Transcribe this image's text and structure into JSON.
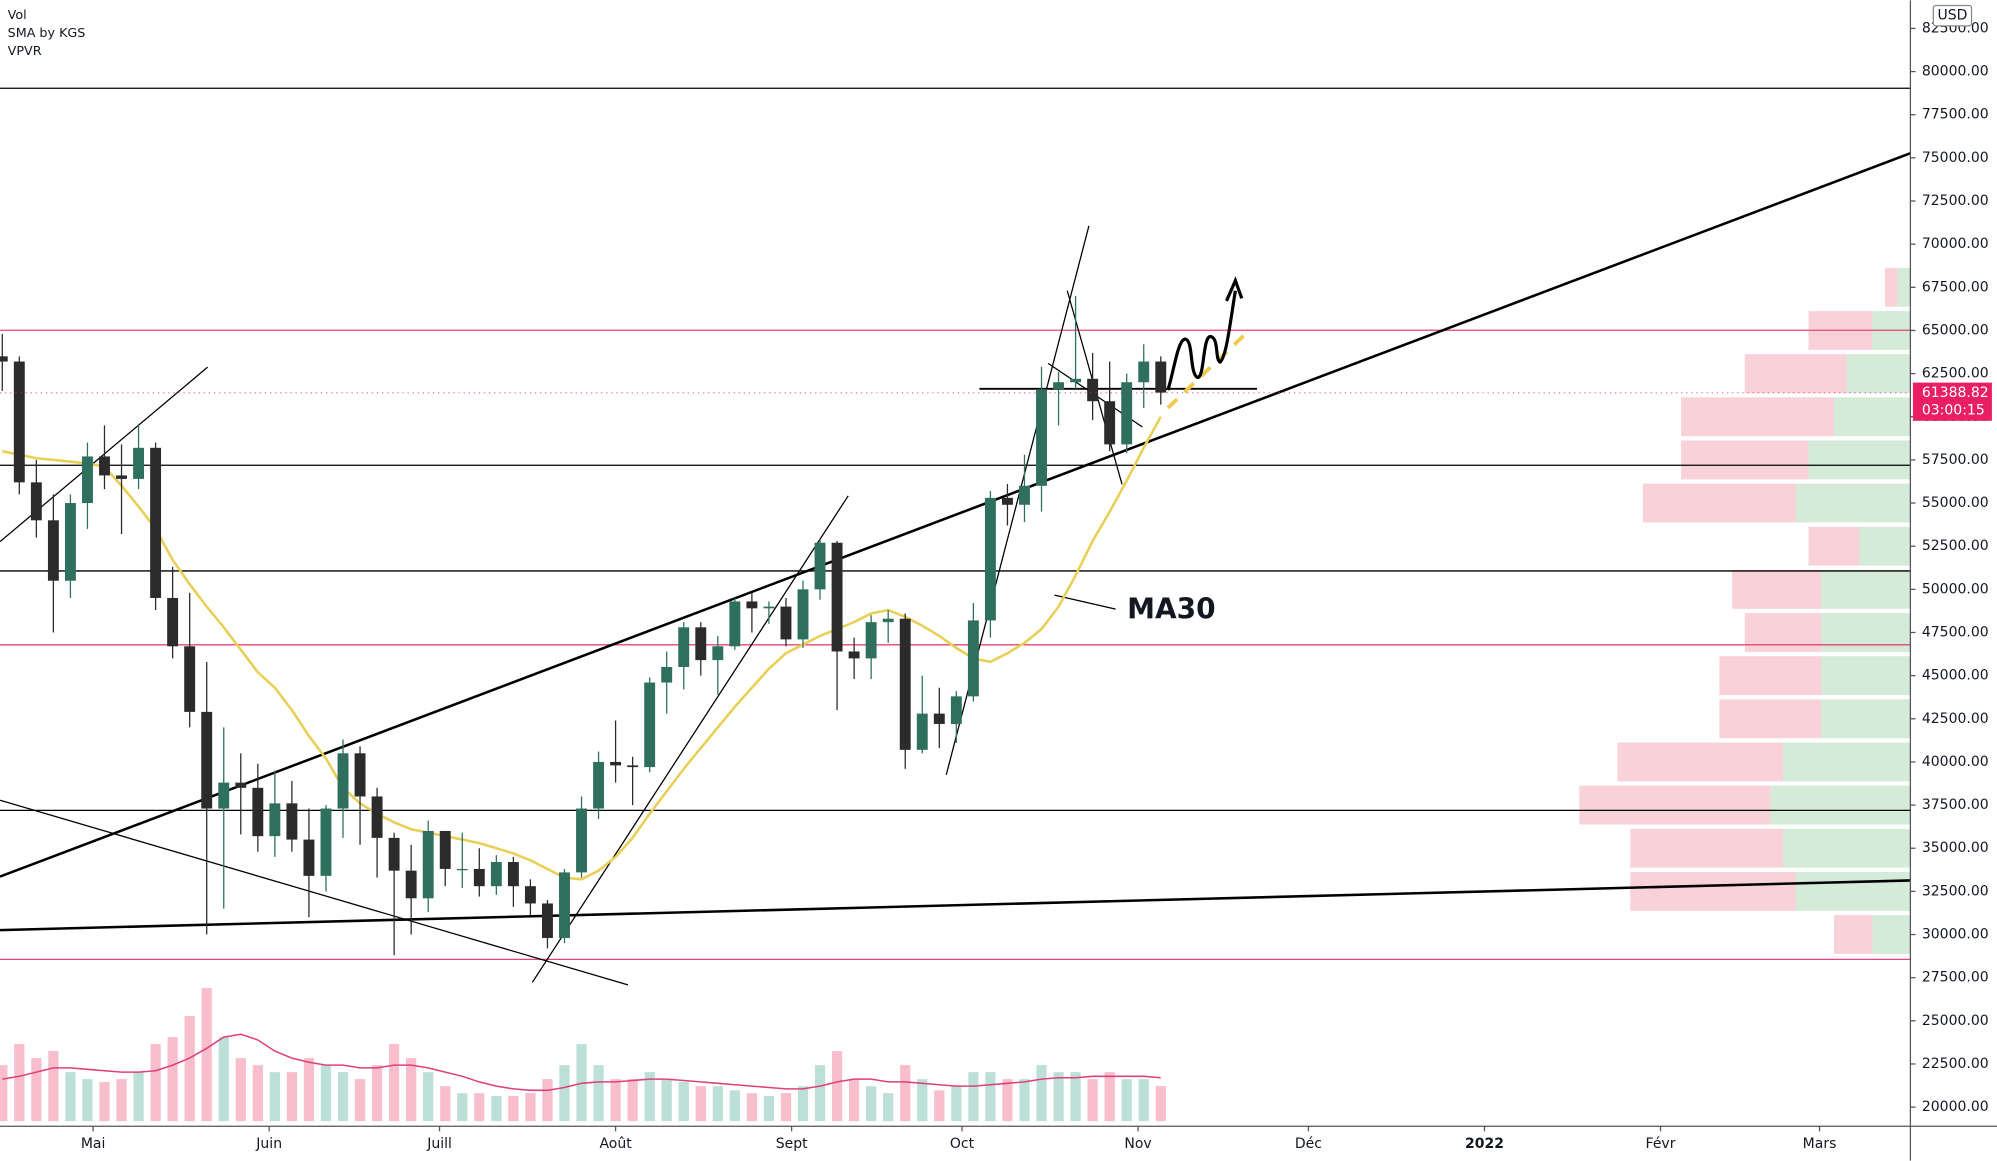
{
  "chart_data": {
    "type": "candlestick",
    "legend": [
      "Vol",
      "SMA by KGS",
      "VPVR"
    ],
    "currency": "USD",
    "annotation": "MA30",
    "x": [
      0,
      3,
      6,
      9,
      12,
      15,
      18,
      21,
      24,
      27,
      30,
      33,
      36,
      39,
      42,
      45,
      48,
      51,
      54,
      57,
      60,
      63,
      66,
      69,
      72,
      75,
      78,
      81,
      84,
      87,
      90,
      93,
      96,
      99,
      102,
      105,
      108,
      111,
      114,
      117,
      120,
      123,
      126,
      129,
      132,
      135,
      138,
      141,
      144,
      147,
      150,
      153,
      156,
      159,
      162,
      165,
      168,
      171,
      174,
      177,
      180,
      183,
      186,
      189,
      192,
      195,
      198,
      201,
      204
    ],
    "open": [
      63500,
      63200,
      56200,
      54000,
      50500,
      55000,
      57700,
      56600,
      56400,
      58200,
      49500,
      46700,
      42900,
      37300,
      38800,
      38500,
      35700,
      37600,
      35500,
      33400,
      37300,
      40500,
      38000,
      35600,
      33700,
      32100,
      36000,
      33800,
      33800,
      32800,
      34200,
      32800,
      31800,
      29800,
      33600,
      37300,
      40000,
      39800,
      39700,
      44600,
      45500,
      47800,
      45900,
      46700,
      49300,
      48900,
      49000,
      47100,
      50000,
      52700,
      46400,
      46000,
      48100,
      48300,
      40700,
      42800,
      42200,
      43800,
      48200,
      55300,
      54900,
      56000,
      61600,
      62000,
      62200,
      60900,
      58400,
      62000,
      63200
    ],
    "high": [
      64800,
      63500,
      57500,
      55500,
      55500,
      58500,
      59500,
      58400,
      59600,
      58500,
      51300,
      49800,
      45800,
      42000,
      40500,
      39900,
      39500,
      38900,
      37300,
      37500,
      41300,
      40900,
      38500,
      35900,
      35200,
      36600,
      36000,
      35900,
      35000,
      34600,
      34500,
      33200,
      32000,
      33800,
      38000,
      40600,
      42400,
      40300,
      44900,
      46400,
      48100,
      48100,
      47300,
      49500,
      49800,
      49300,
      49500,
      50500,
      52900,
      52800,
      47200,
      48500,
      48800,
      48600,
      45000,
      44300,
      44100,
      49200,
      55700,
      56100,
      57800,
      62900,
      62600,
      67000,
      63700,
      63200,
      62500,
      64200,
      63500
    ],
    "low": [
      61500,
      55500,
      53000,
      47500,
      49500,
      53500,
      55800,
      53200,
      55800,
      48800,
      46000,
      42000,
      30000,
      31500,
      35800,
      34800,
      34500,
      34800,
      31000,
      32500,
      35600,
      35200,
      33300,
      28800,
      30000,
      31300,
      32800,
      32700,
      32200,
      32300,
      31600,
      31100,
      29200,
      29500,
      33300,
      36700,
      38800,
      37500,
      39400,
      42800,
      44200,
      45000,
      43900,
      46500,
      47500,
      48000,
      46700,
      46600,
      49400,
      43000,
      44800,
      44800,
      46900,
      39600,
      40500,
      40800,
      41100,
      43500,
      47200,
      53700,
      53900,
      54500,
      59500,
      61600,
      59800,
      58000,
      57900,
      60500,
      60700
    ],
    "close": [
      63200,
      56200,
      54000,
      50500,
      55000,
      57700,
      56600,
      56400,
      58200,
      49500,
      46700,
      42900,
      37300,
      38800,
      38500,
      35700,
      37600,
      35500,
      33400,
      37300,
      40500,
      38000,
      35600,
      33700,
      32100,
      36000,
      33800,
      33800,
      32800,
      34200,
      32800,
      31800,
      29800,
      33600,
      37300,
      40000,
      39800,
      39700,
      44600,
      45500,
      47800,
      45900,
      46700,
      49300,
      48900,
      49000,
      47100,
      50000,
      52700,
      46400,
      46000,
      48100,
      48300,
      40700,
      42800,
      42200,
      43800,
      48200,
      55300,
      54900,
      56000,
      61600,
      62000,
      62200,
      60900,
      58400,
      62000,
      63200,
      61400
    ],
    "up_color": "#2e6f5e",
    "down_color": "#2b2b2b",
    "ma": {
      "color": "#e9cf55",
      "values": [
        58000,
        57800,
        57600,
        57500,
        57400,
        57300,
        57100,
        56000,
        54800,
        53500,
        51700,
        50300,
        49000,
        47800,
        46500,
        45200,
        44300,
        43000,
        41500,
        40200,
        38500,
        37600,
        37000,
        36500,
        36100,
        35900,
        35700,
        35500,
        35300,
        35000,
        34700,
        34300,
        33800,
        33300,
        33200,
        33700,
        34500,
        35600,
        37000,
        38300,
        39600,
        40800,
        42000,
        43200,
        44300,
        45400,
        46300,
        46800,
        47300,
        47700,
        48100,
        48600,
        48800,
        48400,
        47900,
        47300,
        46600,
        46000,
        45800,
        46300,
        46900,
        47700,
        49000,
        50800,
        52800,
        54500,
        56300,
        58200,
        60000
      ]
    },
    "volume": {
      "ylim": [
        0,
        100
      ],
      "ma_color": "#e0407a",
      "values": [
        40,
        55,
        45,
        50,
        35,
        30,
        28,
        30,
        35,
        55,
        60,
        75,
        95,
        60,
        45,
        40,
        35,
        35,
        45,
        40,
        35,
        30,
        40,
        55,
        45,
        35,
        25,
        20,
        20,
        18,
        18,
        20,
        30,
        40,
        55,
        40,
        30,
        30,
        35,
        30,
        28,
        25,
        25,
        22,
        20,
        18,
        20,
        25,
        40,
        50,
        30,
        25,
        20,
        40,
        30,
        22,
        25,
        35,
        35,
        30,
        30,
        40,
        35,
        35,
        30,
        35,
        30,
        30,
        25
      ],
      "ma_values": [
        30,
        32,
        35,
        38,
        38,
        37,
        36,
        35,
        35,
        36,
        40,
        45,
        52,
        60,
        62,
        58,
        50,
        45,
        42,
        40,
        40,
        38,
        38,
        40,
        40,
        38,
        35,
        32,
        28,
        25,
        23,
        22,
        22,
        24,
        27,
        28,
        28,
        29,
        30,
        30,
        29,
        28,
        27,
        26,
        25,
        24,
        23,
        23,
        25,
        28,
        30,
        30,
        28,
        28,
        27,
        26,
        25,
        25,
        26,
        27,
        28,
        30,
        31,
        31,
        32,
        32,
        32,
        32,
        31
      ]
    },
    "volume_profile": {
      "xlim": [
        0,
        300
      ],
      "up_color": "#a8d8b0",
      "down_color": "#f4a6b4",
      "prices": [
        30000,
        32500,
        35000,
        37500,
        40000,
        42500,
        45000,
        47500,
        50000,
        52500,
        55000,
        57500,
        60000,
        62500,
        65000,
        67500
      ],
      "up": [
        30,
        90,
        100,
        110,
        100,
        70,
        70,
        70,
        70,
        40,
        90,
        80,
        60,
        50,
        30,
        10
      ],
      "down": [
        30,
        130,
        120,
        150,
        130,
        80,
        80,
        60,
        70,
        40,
        120,
        100,
        120,
        80,
        50,
        10
      ]
    },
    "last_price": 61388.82,
    "countdown": "03:00:15",
    "xlim": [
      -0.4,
      336
    ],
    "ylim": [
      16900,
      84125
    ],
    "xticks": [
      {
        "value": 16,
        "label": "Mai"
      },
      {
        "value": 47,
        "label": "Juin"
      },
      {
        "value": 77,
        "label": "Juill"
      },
      {
        "value": 108,
        "label": "Août"
      },
      {
        "value": 139,
        "label": "Sept"
      },
      {
        "value": 169,
        "label": "Oct"
      },
      {
        "value": 200,
        "label": "Nov"
      },
      {
        "value": 230,
        "label": "Déc"
      },
      {
        "value": 261,
        "label": "2022"
      },
      {
        "value": 292,
        "label": "Févr"
      },
      {
        "value": 320,
        "label": "Mars"
      }
    ],
    "yticks": [
      {
        "value": 20000,
        "label": "20000.00"
      },
      {
        "value": 22500,
        "label": "22500.00"
      },
      {
        "value": 25000,
        "label": "25000.00"
      },
      {
        "value": 27500,
        "label": "27500.00"
      },
      {
        "value": 30000,
        "label": "30000.00"
      },
      {
        "value": 32500,
        "label": "32500.00"
      },
      {
        "value": 35000,
        "label": "35000.00"
      },
      {
        "value": 37500,
        "label": "37500.00"
      },
      {
        "value": 40000,
        "label": "40000.00"
      },
      {
        "value": 42500,
        "label": "42500.00"
      },
      {
        "value": 45000,
        "label": "45000.00"
      },
      {
        "value": 47500,
        "label": "47500.00"
      },
      {
        "value": 50000,
        "label": "50000.00"
      },
      {
        "value": 52500,
        "label": "52500.00"
      },
      {
        "value": 55000,
        "label": "55000.00"
      },
      {
        "value": 57500,
        "label": "57500.00"
      },
      {
        "value": 60000,
        "label": "60000.00"
      },
      {
        "value": 62500,
        "label": "62500.00"
      },
      {
        "value": 65000,
        "label": "65000.00"
      },
      {
        "value": 67500,
        "label": "67500.00"
      },
      {
        "value": 70000,
        "label": "70000.00"
      },
      {
        "value": 72500,
        "label": "72500.00"
      },
      {
        "value": 75000,
        "label": "75000.00"
      },
      {
        "value": 77500,
        "label": "77500.00"
      },
      {
        "value": 80000,
        "label": "80000.00"
      },
      {
        "value": 82500,
        "label": "82500.00"
      }
    ]
  }
}
